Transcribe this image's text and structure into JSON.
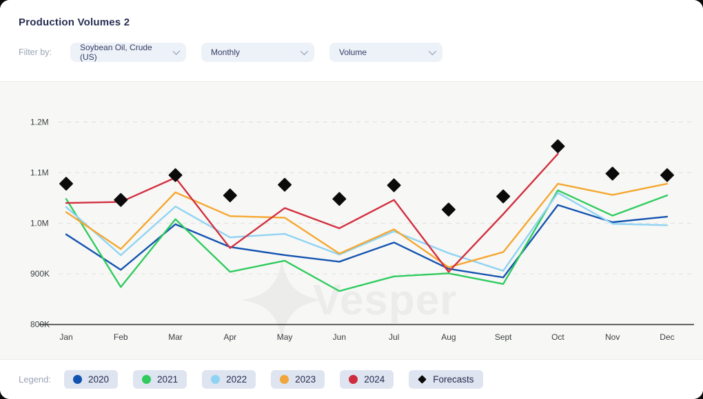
{
  "header": {
    "title": "Production Volumes 2",
    "filter_label": "Filter by:",
    "filters": [
      {
        "name": "product",
        "value": "Soybean Oil, Crude (US)"
      },
      {
        "name": "frequency",
        "value": "Monthly"
      },
      {
        "name": "metric",
        "value": "Volume"
      }
    ]
  },
  "watermark": {
    "text": "Vesper",
    "icon": "sparkle-icon"
  },
  "legend": {
    "label": "Legend:",
    "items": [
      {
        "label": "2020",
        "color": "#1353b0",
        "shape": "circle"
      },
      {
        "label": "2021",
        "color": "#2fcb5e",
        "shape": "circle"
      },
      {
        "label": "2022",
        "color": "#8fd3f3",
        "shape": "circle"
      },
      {
        "label": "2023",
        "color": "#f0a63a",
        "shape": "circle"
      },
      {
        "label": "2024",
        "color": "#cf2d3d",
        "shape": "circle"
      },
      {
        "label": "Forecasts",
        "color": "#0b0b0b",
        "shape": "diamond"
      }
    ]
  },
  "chart_data": {
    "type": "line",
    "title": "Production Volumes 2",
    "xlabel": "",
    "ylabel": "Volume",
    "grid": "dashed-horizontal",
    "legend_position": "bottom",
    "ylim": [
      800000,
      1260000
    ],
    "yticks": [
      {
        "label": "1.2M",
        "value": 1200000
      },
      {
        "label": "1.1M",
        "value": 1100000
      },
      {
        "label": "1.0M",
        "value": 1000000
      },
      {
        "label": "900K",
        "value": 900000
      },
      {
        "label": "800K",
        "value": 800000
      }
    ],
    "categories": [
      "Jan",
      "Feb",
      "Mar",
      "Apr",
      "May",
      "Jun",
      "Jul",
      "Aug",
      "Sept",
      "Oct",
      "Nov",
      "Dec"
    ],
    "series": [
      {
        "name": "2020",
        "shape": "line",
        "color": "#1353b0",
        "values": [
          978000,
          908000,
          998000,
          953000,
          937000,
          924000,
          962000,
          910000,
          893000,
          1036000,
          1002000,
          1013000
        ]
      },
      {
        "name": "2021",
        "shape": "line",
        "color": "#2fcb5e",
        "values": [
          1048000,
          874000,
          1008000,
          904000,
          926000,
          866000,
          895000,
          901000,
          880000,
          1065000,
          1015000,
          1055000
        ]
      },
      {
        "name": "2022",
        "shape": "line",
        "color": "#8fd3f3",
        "values": [
          1032000,
          937000,
          1033000,
          972000,
          979000,
          938000,
          984000,
          941000,
          906000,
          1060000,
          999000,
          996000
        ]
      },
      {
        "name": "2023",
        "shape": "line",
        "color": "#f6a72f",
        "values": [
          1022000,
          949000,
          1061000,
          1014000,
          1011000,
          940000,
          988000,
          913000,
          943000,
          1078000,
          1056000,
          1078000
        ]
      },
      {
        "name": "2024",
        "shape": "line",
        "color": "#d22f3f",
        "values": [
          1040000,
          1042000,
          1090000,
          951000,
          1030000,
          990000,
          1046000,
          904000,
          1018000,
          1137000,
          null,
          null
        ]
      },
      {
        "name": "Forecasts",
        "shape": "diamond",
        "color": "#0b0b0b",
        "values": [
          1078000,
          1046000,
          1095000,
          1055000,
          1076000,
          1048000,
          1075000,
          1027000,
          1053000,
          1152000,
          1098000,
          1095000
        ]
      }
    ]
  }
}
